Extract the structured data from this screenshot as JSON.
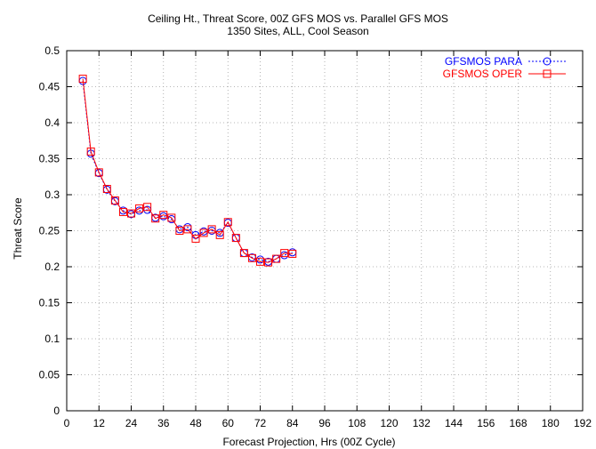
{
  "chart_data": {
    "type": "line",
    "title": "Ceiling Ht., Threat Score, 00Z GFS MOS vs. Parallel GFS MOS",
    "subtitle": "1350 Sites, ALL, Cool Season",
    "xlabel": "Forecast Projection, Hrs (00Z Cycle)",
    "ylabel": "Threat Score",
    "xlim": [
      0,
      192
    ],
    "ylim": [
      0,
      0.5
    ],
    "xticks": [
      "0",
      "12",
      "24",
      "36",
      "48",
      "60",
      "72",
      "84",
      "96",
      "108",
      "120",
      "132",
      "144",
      "156",
      "168",
      "180",
      "192"
    ],
    "yticks": [
      "0",
      "0.05",
      "0.1",
      "0.15",
      "0.2",
      "0.25",
      "0.3",
      "0.35",
      "0.4",
      "0.45",
      "0.5"
    ],
    "x": [
      6,
      9,
      12,
      15,
      18,
      21,
      24,
      27,
      30,
      33,
      36,
      39,
      42,
      45,
      48,
      51,
      54,
      57,
      60,
      63,
      66,
      69,
      72,
      75,
      78,
      81,
      84
    ],
    "series": [
      {
        "name": "GFSMOS PARA",
        "color": "#0000ff",
        "line_style": "dotted",
        "marker": "circle",
        "values": [
          0.458,
          0.357,
          0.33,
          0.307,
          0.291,
          0.278,
          0.273,
          0.278,
          0.279,
          0.268,
          0.27,
          0.266,
          0.252,
          0.255,
          0.244,
          0.249,
          0.25,
          0.247,
          0.261,
          0.24,
          0.219,
          0.213,
          0.21,
          0.207,
          0.211,
          0.216,
          0.22
        ]
      },
      {
        "name": "GFSMOS OPER",
        "color": "#ff0000",
        "line_style": "solid",
        "marker": "square",
        "values": [
          0.461,
          0.36,
          0.331,
          0.308,
          0.292,
          0.276,
          0.274,
          0.281,
          0.283,
          0.267,
          0.272,
          0.268,
          0.25,
          0.252,
          0.239,
          0.247,
          0.252,
          0.244,
          0.262,
          0.24,
          0.219,
          0.212,
          0.207,
          0.206,
          0.211,
          0.219,
          0.218
        ]
      }
    ],
    "grid": true,
    "legend": "top-right"
  }
}
